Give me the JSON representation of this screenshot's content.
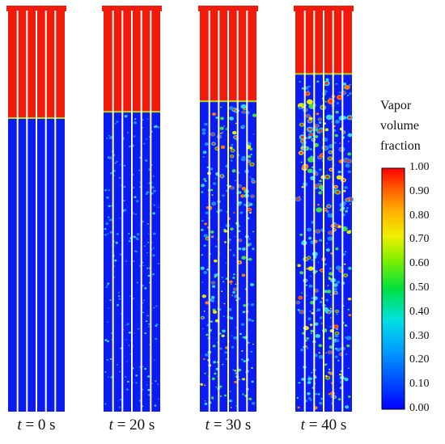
{
  "panels": [
    {
      "t_prefix": "t",
      "time": "= 0 s",
      "vapor_level": 0.0,
      "boiling": 0.0,
      "seed": 11
    },
    {
      "t_prefix": "t",
      "time": "= 20 s",
      "vapor_level": 0.03,
      "boiling": 0.35,
      "seed": 23
    },
    {
      "t_prefix": "t",
      "time": "= 30 s",
      "vapor_level": 0.08,
      "boiling": 0.7,
      "seed": 37
    },
    {
      "t_prefix": "t",
      "time": "= 40 s",
      "vapor_level": 0.21,
      "boiling": 1.0,
      "seed": 53
    }
  ],
  "colorbar": {
    "title_lines": [
      "Vapor",
      "volume",
      "fraction"
    ],
    "ticks": [
      "1.00",
      "0.90",
      "0.80",
      "0.70",
      "0.60",
      "0.50",
      "0.40",
      "0.30",
      "0.20",
      "0.10",
      "0.00"
    ]
  },
  "colors": {
    "liquid": "#0b1cf2",
    "vapor": "#f21b0a",
    "rod": "#ffffff"
  }
}
